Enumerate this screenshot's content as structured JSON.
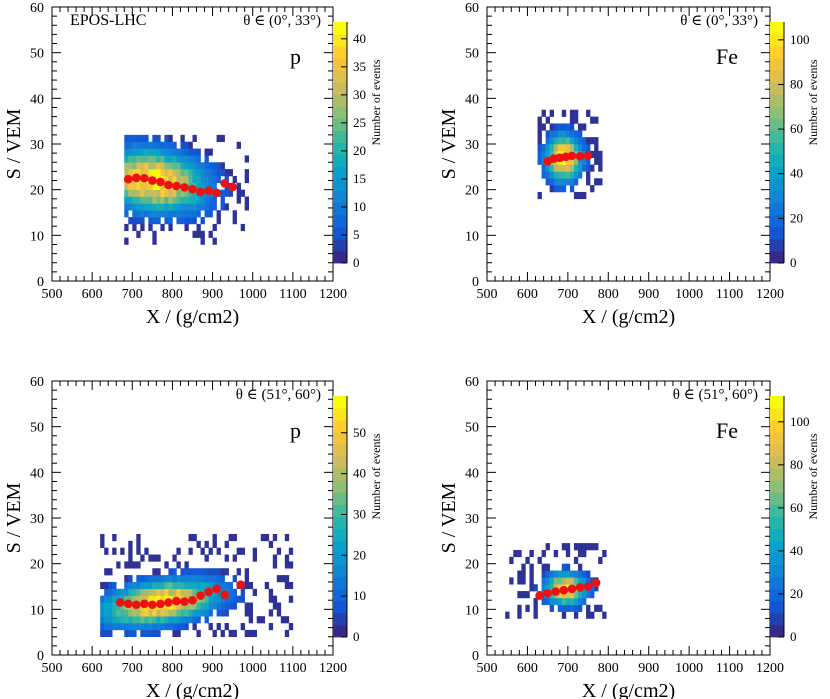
{
  "figure": {
    "x_axis_label": "X / (g/cm2)",
    "y_axis_label": "S / VEM",
    "colorbar_label": "Number of events",
    "model_label": "EPOS-LHC"
  },
  "chart_data": [
    {
      "type": "heatmap",
      "model": "EPOS-LHC",
      "particle": "p",
      "theta_range": "θ ∈ (0°, 33°)",
      "xlim": [
        500,
        1200
      ],
      "ylim": [
        0,
        60
      ],
      "xticks": [
        500,
        600,
        700,
        800,
        900,
        1000,
        1100,
        1200
      ],
      "yticks": [
        0,
        10,
        20,
        30,
        40,
        50,
        60
      ],
      "colorbar": {
        "max": 43,
        "ticks": [
          0,
          5,
          10,
          15,
          20,
          25,
          30,
          35,
          40
        ]
      },
      "cloud": {
        "center": [
          750,
          22
        ],
        "spread": [
          110,
          5.5
        ],
        "tilt": -0.01,
        "x_range": [
          680,
          990
        ],
        "y_range": [
          8,
          32
        ],
        "seed": 11
      },
      "profile": [
        {
          "x": 690,
          "y": 22.3
        },
        {
          "x": 710,
          "y": 22.6
        },
        {
          "x": 730,
          "y": 22.5
        },
        {
          "x": 750,
          "y": 22.0
        },
        {
          "x": 770,
          "y": 21.7
        },
        {
          "x": 790,
          "y": 21.0
        },
        {
          "x": 810,
          "y": 20.8
        },
        {
          "x": 830,
          "y": 20.5
        },
        {
          "x": 850,
          "y": 20.1
        },
        {
          "x": 870,
          "y": 19.5
        },
        {
          "x": 890,
          "y": 19.8
        },
        {
          "x": 910,
          "y": 19.3
        },
        {
          "x": 930,
          "y": 21.4
        },
        {
          "x": 950,
          "y": 20.6
        }
      ]
    },
    {
      "type": "heatmap",
      "model": "EPOS-LHC",
      "particle": "Fe",
      "theta_range": "θ ∈ (0°, 33°)",
      "xlim": [
        500,
        1200
      ],
      "ylim": [
        0,
        60
      ],
      "xticks": [
        500,
        600,
        700,
        800,
        900,
        1000,
        1100,
        1200
      ],
      "yticks": [
        0,
        10,
        20,
        30,
        40,
        50,
        60
      ],
      "colorbar": {
        "max": 108,
        "ticks": [
          0,
          20,
          40,
          60,
          80,
          100
        ]
      },
      "cloud": {
        "center": [
          690,
          27
        ],
        "spread": [
          38,
          4.2
        ],
        "tilt": 0.0,
        "x_range": [
          625,
          780
        ],
        "y_range": [
          18,
          38
        ],
        "seed": 23
      },
      "profile": [
        {
          "x": 650,
          "y": 26.2
        },
        {
          "x": 665,
          "y": 26.8
        },
        {
          "x": 680,
          "y": 27.0
        },
        {
          "x": 695,
          "y": 27.2
        },
        {
          "x": 710,
          "y": 27.4
        },
        {
          "x": 730,
          "y": 27.3
        },
        {
          "x": 750,
          "y": 27.4
        }
      ]
    },
    {
      "type": "heatmap",
      "model": "EPOS-LHC",
      "particle": "p",
      "theta_range": "θ ∈ (51°, 60°)",
      "xlim": [
        500,
        1200
      ],
      "ylim": [
        0,
        60
      ],
      "xticks": [
        500,
        600,
        700,
        800,
        900,
        1000,
        1100,
        1200
      ],
      "yticks": [
        0,
        10,
        20,
        30,
        40,
        50,
        60
      ],
      "colorbar": {
        "max": 59,
        "ticks": [
          0,
          10,
          20,
          30,
          40,
          50
        ]
      },
      "cloud": {
        "center": [
          770,
          11.5
        ],
        "spread": [
          120,
          3.8
        ],
        "tilt": 0.012,
        "x_range": [
          620,
          1100
        ],
        "y_range": [
          4,
          26
        ],
        "seed": 37
      },
      "profile": [
        {
          "x": 670,
          "y": 11.5
        },
        {
          "x": 690,
          "y": 11.2
        },
        {
          "x": 710,
          "y": 11.0
        },
        {
          "x": 730,
          "y": 11.2
        },
        {
          "x": 750,
          "y": 11.0
        },
        {
          "x": 770,
          "y": 11.2
        },
        {
          "x": 790,
          "y": 11.5
        },
        {
          "x": 810,
          "y": 11.8
        },
        {
          "x": 830,
          "y": 11.7
        },
        {
          "x": 850,
          "y": 12.0
        },
        {
          "x": 870,
          "y": 13.0
        },
        {
          "x": 890,
          "y": 13.8
        },
        {
          "x": 910,
          "y": 14.5
        },
        {
          "x": 930,
          "y": 13.2
        },
        {
          "x": 970,
          "y": 15.4
        }
      ]
    },
    {
      "type": "heatmap",
      "model": "EPOS-LHC",
      "particle": "Fe",
      "theta_range": "θ ∈ (51°, 60°)",
      "xlim": [
        500,
        1200
      ],
      "ylim": [
        0,
        60
      ],
      "xticks": [
        500,
        600,
        700,
        800,
        900,
        1000,
        1100,
        1200
      ],
      "yticks": [
        0,
        10,
        20,
        30,
        40,
        50,
        60
      ],
      "colorbar": {
        "max": 112,
        "ticks": [
          0,
          20,
          40,
          60,
          80,
          100
        ]
      },
      "cloud": {
        "center": [
          695,
          14.5
        ],
        "spread": [
          42,
          2.8
        ],
        "tilt": 0.0,
        "x_range": [
          545,
          790
        ],
        "y_range": [
          8,
          24
        ],
        "seed": 51
      },
      "profile": [
        {
          "x": 630,
          "y": 13.0
        },
        {
          "x": 650,
          "y": 13.5
        },
        {
          "x": 670,
          "y": 13.9
        },
        {
          "x": 690,
          "y": 14.2
        },
        {
          "x": 710,
          "y": 14.5
        },
        {
          "x": 730,
          "y": 14.8
        },
        {
          "x": 750,
          "y": 15.0
        },
        {
          "x": 770,
          "y": 15.8
        }
      ]
    }
  ]
}
